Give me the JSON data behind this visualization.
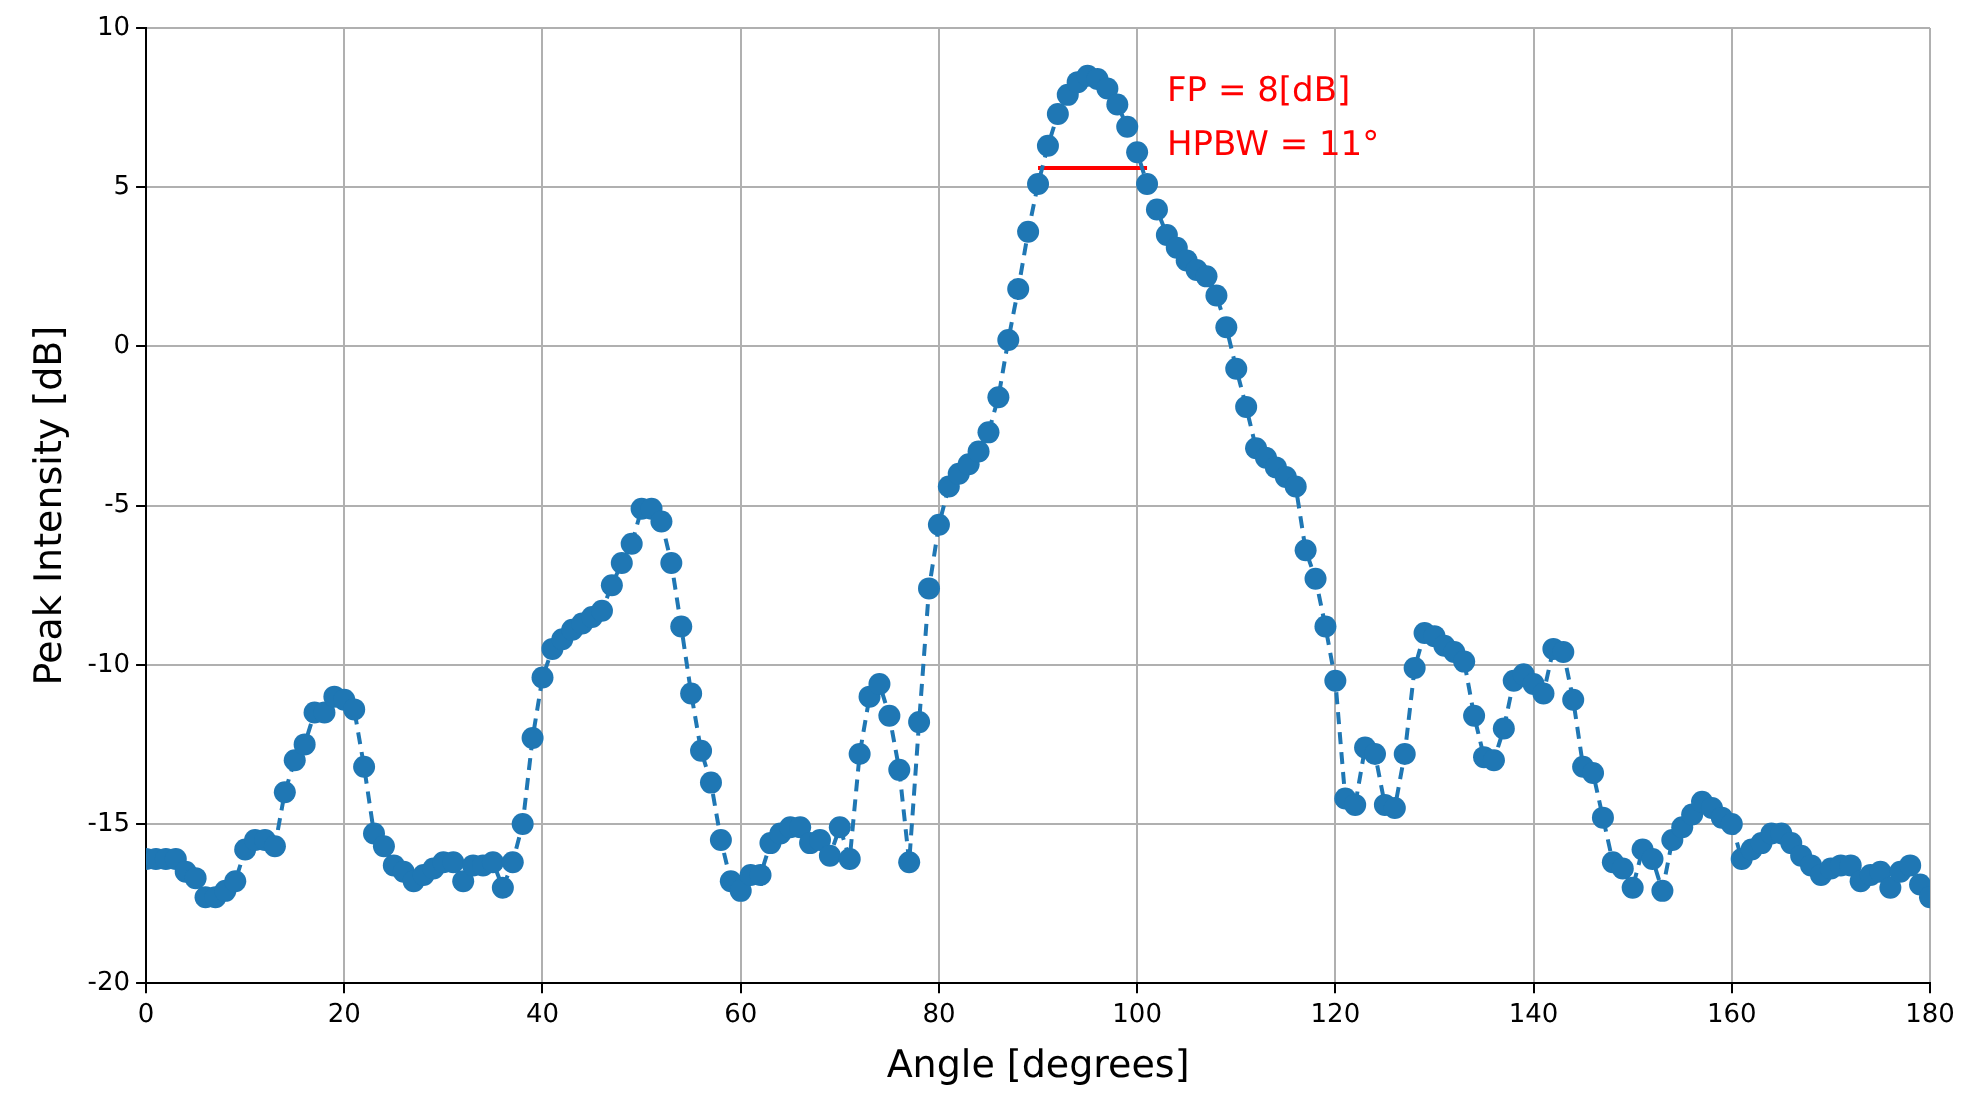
{
  "chart_data": {
    "type": "line",
    "xlabel": "Angle [degrees]",
    "ylabel": "Peak Intensity [dB]",
    "xlim": [
      0,
      180
    ],
    "xticks": [
      0,
      20,
      40,
      60,
      80,
      100,
      120,
      140,
      160,
      180
    ],
    "ylim": [
      -20,
      10
    ],
    "yticks": [
      -20,
      -15,
      -10,
      -5,
      0,
      5,
      10
    ],
    "grid": true,
    "annotations": [
      "FP = 8[dB]",
      "HPBW = 11°"
    ],
    "series": [
      {
        "color": "#1f77b4",
        "marker": "circle",
        "line_style": "dashed",
        "x": [
          0,
          1,
          2,
          3,
          4,
          5,
          6,
          7,
          8,
          9,
          10,
          11,
          12,
          13,
          14,
          15,
          16,
          17,
          18,
          19,
          20,
          21,
          22,
          23,
          24,
          25,
          26,
          27,
          28,
          29,
          30,
          31,
          32,
          33,
          34,
          35,
          36,
          37,
          38,
          39,
          40,
          41,
          42,
          43,
          44,
          45,
          46,
          47,
          48,
          49,
          50,
          51,
          52,
          53,
          54,
          55,
          56,
          57,
          58,
          59,
          60,
          61,
          62,
          63,
          64,
          65,
          66,
          67,
          68,
          69,
          70,
          71,
          72,
          73,
          74,
          75,
          76,
          77,
          78,
          79,
          80,
          81,
          82,
          83,
          84,
          85,
          86,
          87,
          88,
          89,
          90,
          91,
          92,
          93,
          94,
          95,
          96,
          97,
          98,
          99,
          100,
          101,
          102,
          103,
          104,
          105,
          106,
          107,
          108,
          109,
          110,
          111,
          112,
          113,
          114,
          115,
          116,
          117,
          118,
          119,
          120,
          121,
          122,
          123,
          124,
          125,
          126,
          127,
          128,
          129,
          130,
          131,
          132,
          133,
          134,
          135,
          136,
          137,
          138,
          139,
          140,
          141,
          142,
          143,
          144,
          145,
          146,
          147,
          148,
          149,
          150,
          151,
          152,
          153,
          154,
          155,
          156,
          157,
          158,
          159,
          160,
          161,
          162,
          163,
          164,
          165,
          166,
          167,
          168,
          169,
          170,
          171,
          172,
          173,
          174,
          175,
          176,
          177,
          178,
          179,
          180
        ],
        "values": [
          -16.1,
          -16.1,
          -16.1,
          -16.1,
          -16.5,
          -16.7,
          -17.3,
          -17.3,
          -17.1,
          -16.8,
          -15.8,
          -15.5,
          -15.5,
          -15.7,
          -14,
          -13,
          -12.5,
          -11.5,
          -11.5,
          -11,
          -11.1,
          -11.4,
          -13.2,
          -15.3,
          -15.7,
          -16.3,
          -16.5,
          -16.8,
          -16.6,
          -16.4,
          -16.2,
          -16.2,
          -16.8,
          -16.3,
          -16.3,
          -16.2,
          -17,
          -16.2,
          -15,
          -12.3,
          -10.4,
          -9.5,
          -9.2,
          -8.9,
          -8.7,
          -8.5,
          -8.3,
          -7.5,
          -6.8,
          -6.2,
          -5.1,
          -5.1,
          -5.5,
          -6.8,
          -8.8,
          -10.9,
          -12.7,
          -13.7,
          -15.5,
          -16.8,
          -17.1,
          -16.6,
          -16.6,
          -15.6,
          -15.3,
          -15.1,
          -15.1,
          -15.6,
          -15.5,
          -16,
          -15.1,
          -16.1,
          -12.8,
          -11,
          -10.6,
          -11.6,
          -13.3,
          -16.2,
          -11.8,
          -7.6,
          -5.6,
          -4.4,
          -4,
          -3.7,
          -3.3,
          -2.7,
          -1.6,
          0.2,
          1.8,
          3.6,
          5.1,
          6.3,
          7.3,
          7.9,
          8.3,
          8.5,
          8.4,
          8.1,
          7.6,
          6.9,
          6.1,
          5.1,
          4.3,
          3.5,
          3.1,
          2.7,
          2.4,
          2.2,
          1.6,
          0.6,
          -0.7,
          -1.9,
          -3.2,
          -3.5,
          -3.8,
          -4.1,
          -4.4,
          -6.4,
          -7.3,
          -8.8,
          -10.5,
          -14.2,
          -14.4,
          -12.6,
          -12.8,
          -14.4,
          -14.5,
          -12.8,
          -10.1,
          -9,
          -9.1,
          -9.4,
          -9.6,
          -9.9,
          -11.6,
          -12.9,
          -13,
          -12,
          -10.5,
          -10.3,
          -10.6,
          -10.9,
          -9.5,
          -9.6,
          -11.1,
          -13.2,
          -13.4,
          -14.8,
          -16.2,
          -16.4,
          -17,
          -15.8,
          -16.1,
          -17.1,
          -15.5,
          -15.1,
          -14.7,
          -14.3,
          -14.5,
          -14.8,
          -15,
          -16.1,
          -15.8,
          -15.6,
          -15.3,
          -15.3,
          -15.6,
          -16,
          -16.3,
          -16.6,
          -16.4,
          -16.3,
          -16.3,
          -16.8,
          -16.6,
          -16.5,
          -17,
          -16.5,
          -16.3,
          -16.9,
          -17.3
        ]
      },
      {
        "type": "line",
        "color": "#ff0000",
        "marker": "none",
        "line_style": "solid",
        "x": [
          90,
          101
        ],
        "values": [
          5.6,
          5.6
        ]
      }
    ]
  }
}
